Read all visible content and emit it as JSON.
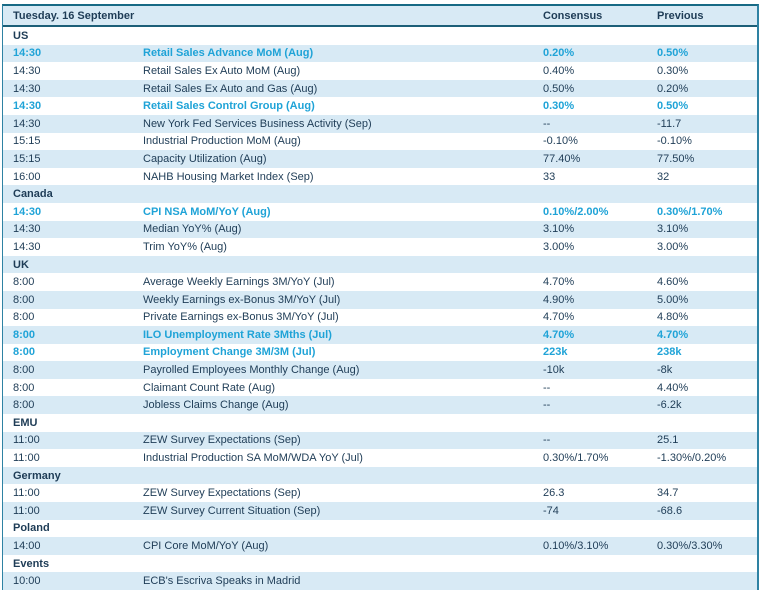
{
  "table": {
    "header": {
      "date": "Tuesday. 16 September",
      "consensus": "Consensus",
      "previous": "Previous"
    },
    "colors": {
      "stripe_bg": "#d8eaf5",
      "text": "#1e3c56",
      "highlight": "#1fa3d7",
      "border_top": "#176a85",
      "border_header": "#1c5f78",
      "border_side": "#2e82a3"
    },
    "rows": [
      {
        "type": "section",
        "label": "US"
      },
      {
        "type": "event",
        "time": "14:30",
        "name": "Retail Sales Advance MoM (Aug)",
        "consensus": "0.20%",
        "previous": "0.50%",
        "highlight": true
      },
      {
        "type": "event",
        "time": "14:30",
        "name": "Retail Sales Ex Auto MoM (Aug)",
        "consensus": "0.40%",
        "previous": "0.30%",
        "highlight": false
      },
      {
        "type": "event",
        "time": "14:30",
        "name": "Retail Sales Ex Auto and Gas (Aug)",
        "consensus": "0.50%",
        "previous": "0.20%",
        "highlight": false
      },
      {
        "type": "event",
        "time": "14:30",
        "name": "Retail Sales Control Group (Aug)",
        "consensus": "0.30%",
        "previous": "0.50%",
        "highlight": true
      },
      {
        "type": "event",
        "time": "14:30",
        "name": "New York Fed Services Business Activity (Sep)",
        "consensus": "--",
        "previous": "-11.7",
        "highlight": false
      },
      {
        "type": "event",
        "time": "15:15",
        "name": "Industrial Production MoM (Aug)",
        "consensus": "-0.10%",
        "previous": "-0.10%",
        "highlight": false
      },
      {
        "type": "event",
        "time": "15:15",
        "name": "Capacity Utilization (Aug)",
        "consensus": "77.40%",
        "previous": "77.50%",
        "highlight": false
      },
      {
        "type": "event",
        "time": "16:00",
        "name": "NAHB Housing Market Index (Sep)",
        "consensus": "33",
        "previous": "32",
        "highlight": false
      },
      {
        "type": "section",
        "label": "Canada"
      },
      {
        "type": "event",
        "time": "14:30",
        "name": "CPI NSA MoM/YoY (Aug)",
        "consensus": "0.10%/2.00%",
        "previous": "0.30%/1.70%",
        "highlight": true
      },
      {
        "type": "event",
        "time": "14:30",
        "name": "Median YoY% (Aug)",
        "consensus": "3.10%",
        "previous": "3.10%",
        "highlight": false
      },
      {
        "type": "event",
        "time": "14:30",
        "name": "Trim YoY% (Aug)",
        "consensus": "3.00%",
        "previous": "3.00%",
        "highlight": false
      },
      {
        "type": "section",
        "label": "UK"
      },
      {
        "type": "event",
        "time": "8:00",
        "name": "Average Weekly Earnings 3M/YoY (Jul)",
        "consensus": "4.70%",
        "previous": "4.60%",
        "highlight": false
      },
      {
        "type": "event",
        "time": "8:00",
        "name": "Weekly Earnings ex-Bonus 3M/YoY (Jul)",
        "consensus": "4.90%",
        "previous": "5.00%",
        "highlight": false
      },
      {
        "type": "event",
        "time": "8:00",
        "name": "Private Earnings ex-Bonus 3M/YoY (Jul)",
        "consensus": "4.70%",
        "previous": "4.80%",
        "highlight": false
      },
      {
        "type": "event",
        "time": "8:00",
        "name": "ILO Unemployment Rate 3Mths (Jul)",
        "consensus": "4.70%",
        "previous": "4.70%",
        "highlight": true
      },
      {
        "type": "event",
        "time": "8:00",
        "name": "Employment Change 3M/3M (Jul)",
        "consensus": "223k",
        "previous": "238k",
        "highlight": true
      },
      {
        "type": "event",
        "time": "8:00",
        "name": "Payrolled Employees Monthly Change (Aug)",
        "consensus": "-10k",
        "previous": "-8k",
        "highlight": false
      },
      {
        "type": "event",
        "time": "8:00",
        "name": "Claimant Count Rate (Aug)",
        "consensus": "--",
        "previous": "4.40%",
        "highlight": false
      },
      {
        "type": "event",
        "time": "8:00",
        "name": "Jobless Claims Change (Aug)",
        "consensus": "--",
        "previous": "-6.2k",
        "highlight": false
      },
      {
        "type": "section",
        "label": "EMU"
      },
      {
        "type": "event",
        "time": "11:00",
        "name": "ZEW Survey Expectations (Sep)",
        "consensus": "--",
        "previous": "25.1",
        "highlight": false
      },
      {
        "type": "event",
        "time": "11:00",
        "name": "Industrial Production SA MoM/WDA YoY (Jul)",
        "consensus": "0.30%/1.70%",
        "previous": "-1.30%/0.20%",
        "highlight": false
      },
      {
        "type": "section",
        "label": "Germany"
      },
      {
        "type": "event",
        "time": "11:00",
        "name": "ZEW Survey Expectations (Sep)",
        "consensus": "26.3",
        "previous": "34.7",
        "highlight": false
      },
      {
        "type": "event",
        "time": "11:00",
        "name": "ZEW Survey Current Situation (Sep)",
        "consensus": "-74",
        "previous": "-68.6",
        "highlight": false
      },
      {
        "type": "section",
        "label": "Poland"
      },
      {
        "type": "event",
        "time": "14:00",
        "name": "CPI Core MoM/YoY (Aug)",
        "consensus": "0.10%/3.10%",
        "previous": "0.30%/3.30%",
        "highlight": false
      },
      {
        "type": "section",
        "label": "Events"
      },
      {
        "type": "event",
        "time": "10:00",
        "name": "ECB's Escriva Speaks in Madrid",
        "consensus": "",
        "previous": "",
        "highlight": false
      }
    ]
  }
}
